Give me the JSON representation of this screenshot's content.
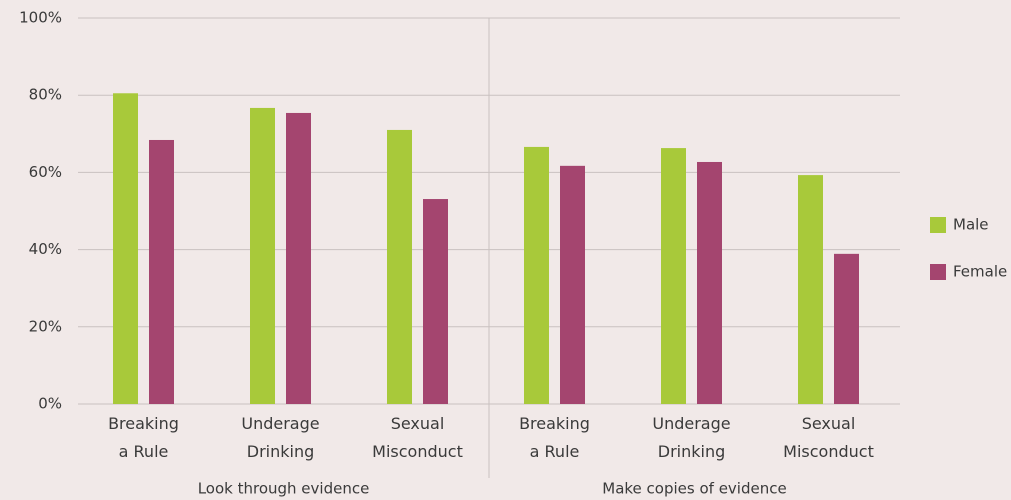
{
  "chart_data": {
    "type": "bar",
    "categories": [
      "Breaking\na Rule",
      "Underage\nDrinking",
      "Sexual\nMisconduct",
      "Breaking\na Rule",
      "Underage\nDrinking",
      "Sexual\nMisconduct"
    ],
    "groups": [
      "Look through evidence",
      "Make copies of evidence"
    ],
    "series": [
      {
        "name": "Male",
        "color": "#a8c93a",
        "values": [
          80.5,
          76.7,
          71,
          66.6,
          66.3,
          59.3
        ]
      },
      {
        "name": "Female",
        "color": "#a4456f",
        "values": [
          68.4,
          75.4,
          53.1,
          61.7,
          62.7,
          38.9
        ]
      }
    ],
    "ylim": [
      0,
      100
    ],
    "yticks": [
      {
        "value": 0,
        "label": "0%"
      },
      {
        "value": 20,
        "label": "20%"
      },
      {
        "value": 40,
        "label": "40%"
      },
      {
        "value": 60,
        "label": "60%"
      },
      {
        "value": 80,
        "label": "80%"
      },
      {
        "value": 100,
        "label": "100%"
      }
    ],
    "grid": true,
    "legend": "right"
  }
}
